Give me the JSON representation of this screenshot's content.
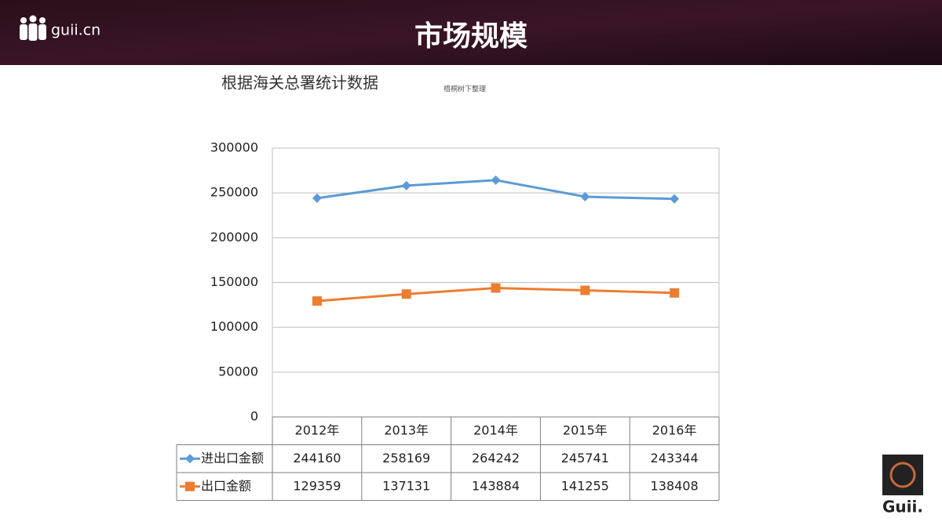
{
  "header": {
    "logo_text": "guii.cn",
    "title": "市场规模"
  },
  "chart_data": {
    "type": "line",
    "title": "根据海关总署统计数据",
    "subtitle": "梧桐树下整理",
    "categories": [
      "2012年",
      "2013年",
      "2014年",
      "2015年",
      "2016年"
    ],
    "series": [
      {
        "name": "进出口金额",
        "color": "#5b9bd5",
        "marker": "diamond",
        "values": [
          244160,
          258169,
          264242,
          245741,
          243344
        ]
      },
      {
        "name": "出口金额",
        "color": "#ed7d31",
        "marker": "square",
        "values": [
          129359,
          137131,
          143884,
          141255,
          138408
        ]
      }
    ],
    "ylim": [
      0,
      300000
    ],
    "yticks": [
      0,
      50000,
      100000,
      150000,
      200000,
      250000,
      300000
    ],
    "grid": true,
    "data_table": true
  },
  "footer": {
    "logo_text": "Guii."
  }
}
